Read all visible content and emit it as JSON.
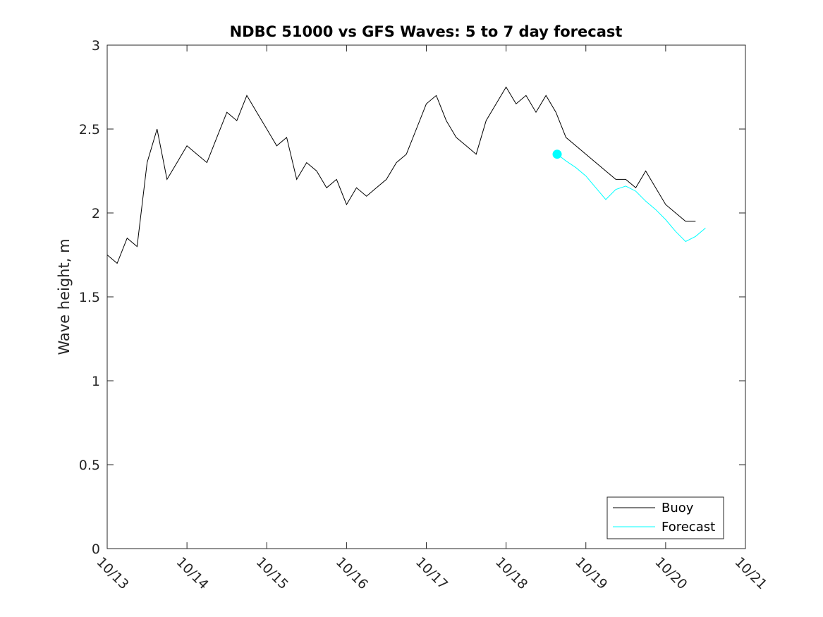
{
  "chart_data": {
    "type": "line",
    "title": "NDBC 51000 vs GFS Waves: 5 to 7 day forecast",
    "xlabel": "",
    "ylabel": "Wave height, m",
    "x_axis": "date (MM/DD)",
    "xlim": [
      "10/13",
      "10/21"
    ],
    "ylim": [
      0,
      3
    ],
    "xticks": [
      "10/13",
      "10/14",
      "10/15",
      "10/16",
      "10/17",
      "10/18",
      "10/19",
      "10/20",
      "10/21"
    ],
    "yticks": [
      "0",
      "0.5",
      "1",
      "1.5",
      "2",
      "2.5",
      "3"
    ],
    "grid": false,
    "legend": {
      "placement": "bottom-right",
      "entries": [
        "Buoy",
        "Forecast"
      ]
    },
    "colors": {
      "Buoy": "#000000",
      "Forecast": "#00ffff"
    },
    "series": [
      {
        "name": "Buoy",
        "x": [
          0.0,
          0.125,
          0.25,
          0.375,
          0.5,
          0.625,
          0.75,
          0.875,
          1.0,
          1.125,
          1.25,
          1.375,
          1.5,
          1.625,
          1.75,
          1.875,
          2.0,
          2.125,
          2.25,
          2.375,
          2.5,
          2.625,
          2.75,
          2.875,
          3.0,
          3.125,
          3.25,
          3.375,
          3.5,
          3.625,
          3.75,
          3.875,
          4.0,
          4.125,
          4.25,
          4.375,
          4.5,
          4.625,
          4.75,
          4.875,
          5.0,
          5.125,
          5.25,
          5.375,
          5.5,
          5.625,
          5.75,
          5.875,
          6.0,
          6.125,
          6.25,
          6.375,
          6.5,
          6.625,
          6.75,
          6.875,
          7.0,
          7.125,
          7.25,
          7.375
        ],
        "y": [
          1.75,
          1.7,
          1.85,
          1.8,
          2.3,
          2.5,
          2.2,
          2.3,
          2.4,
          2.35,
          2.3,
          2.45,
          2.6,
          2.55,
          2.7,
          2.6,
          2.5,
          2.4,
          2.45,
          2.2,
          2.3,
          2.25,
          2.15,
          2.2,
          2.05,
          2.15,
          2.1,
          2.15,
          2.2,
          2.3,
          2.35,
          2.5,
          2.65,
          2.7,
          2.55,
          2.45,
          2.4,
          2.35,
          2.55,
          2.65,
          2.75,
          2.65,
          2.7,
          2.6,
          2.7,
          2.6,
          2.45,
          2.4,
          2.35,
          2.3,
          2.25,
          2.2,
          2.2,
          2.15,
          2.25,
          2.15,
          2.05,
          2.0,
          1.95,
          1.95
        ]
      },
      {
        "name": "Forecast",
        "x": [
          5.64,
          5.75,
          5.875,
          6.0,
          6.125,
          6.25,
          6.375,
          6.5,
          6.625,
          6.75,
          6.875,
          7.0,
          7.125,
          7.25,
          7.375,
          7.5
        ],
        "y": [
          2.35,
          2.31,
          2.27,
          2.22,
          2.15,
          2.08,
          2.14,
          2.16,
          2.13,
          2.07,
          2.02,
          1.96,
          1.89,
          1.83,
          1.86,
          1.91
        ]
      }
    ],
    "start_marker": {
      "series": "Forecast",
      "x": 5.64,
      "y": 2.35,
      "color": "#00ffff"
    }
  }
}
